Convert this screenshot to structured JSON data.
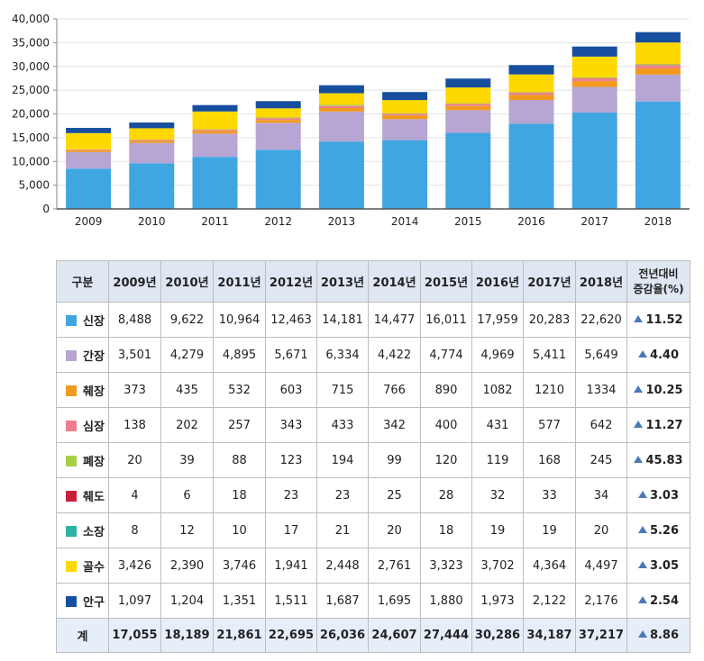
{
  "chart_data": {
    "type": "bar",
    "stacked": true,
    "categories": [
      "2009",
      "2010",
      "2011",
      "2012",
      "2013",
      "2014",
      "2015",
      "2016",
      "2017",
      "2018"
    ],
    "ylim": [
      0,
      40000
    ],
    "yticks": [
      "0",
      "5,000",
      "10,000",
      "15,000",
      "20,000",
      "25,000",
      "30,000",
      "35,000",
      "40,000"
    ],
    "legend": "table",
    "series": [
      {
        "name": "신장",
        "color": "#3fa6e2",
        "values": [
          8488,
          9622,
          10964,
          12463,
          14181,
          14477,
          16011,
          17959,
          20283,
          22620
        ]
      },
      {
        "name": "간장",
        "color": "#b7a5d3",
        "values": [
          3501,
          4279,
          4895,
          5671,
          6334,
          4422,
          4774,
          4969,
          5411,
          5649
        ]
      },
      {
        "name": "췌장",
        "color": "#f29a1e",
        "values": [
          373,
          435,
          532,
          603,
          715,
          766,
          890,
          1082,
          1210,
          1334
        ]
      },
      {
        "name": "심장",
        "color": "#f07d8e",
        "values": [
          138,
          202,
          257,
          343,
          433,
          342,
          400,
          431,
          577,
          642
        ]
      },
      {
        "name": "폐장",
        "color": "#a8cf45",
        "values": [
          20,
          39,
          88,
          123,
          194,
          99,
          120,
          119,
          168,
          245
        ]
      },
      {
        "name": "췌도",
        "color": "#c8203a",
        "values": [
          4,
          6,
          18,
          23,
          23,
          25,
          28,
          32,
          33,
          34
        ]
      },
      {
        "name": "소장",
        "color": "#2bb3a3",
        "values": [
          8,
          12,
          10,
          17,
          21,
          20,
          18,
          19,
          19,
          20
        ]
      },
      {
        "name": "골수",
        "color": "#ffd800",
        "values": [
          3426,
          2390,
          3746,
          1941,
          2448,
          2761,
          3323,
          3702,
          4364,
          4497
        ]
      },
      {
        "name": "안구",
        "color": "#174f9e",
        "values": [
          1097,
          1204,
          1351,
          1511,
          1687,
          1695,
          1880,
          1973,
          2122,
          2176
        ]
      }
    ]
  },
  "table": {
    "header": {
      "category": "구분",
      "years": [
        "2009년",
        "2010년",
        "2011년",
        "2012년",
        "2013년",
        "2014년",
        "2015년",
        "2016년",
        "2017년",
        "2018년"
      ],
      "change_line1": "전년대비",
      "change_line2": "증감율(%)"
    },
    "rows": [
      {
        "name": "신장",
        "color": "#3fa6e2",
        "values": [
          "8,488",
          "9,622",
          "10,964",
          "12,463",
          "14,181",
          "14,477",
          "16,011",
          "17,959",
          "20,283",
          "22,620"
        ],
        "change": "11.52"
      },
      {
        "name": "간장",
        "color": "#b7a5d3",
        "values": [
          "3,501",
          "4,279",
          "4,895",
          "5,671",
          "6,334",
          "4,422",
          "4,774",
          "4,969",
          "5,411",
          "5,649"
        ],
        "change": "4.40"
      },
      {
        "name": "췌장",
        "color": "#f29a1e",
        "values": [
          "373",
          "435",
          "532",
          "603",
          "715",
          "766",
          "890",
          "1082",
          "1210",
          "1334"
        ],
        "change": "10.25"
      },
      {
        "name": "심장",
        "color": "#f07d8e",
        "values": [
          "138",
          "202",
          "257",
          "343",
          "433",
          "342",
          "400",
          "431",
          "577",
          "642"
        ],
        "change": "11.27"
      },
      {
        "name": "폐장",
        "color": "#a8cf45",
        "values": [
          "20",
          "39",
          "88",
          "123",
          "194",
          "99",
          "120",
          "119",
          "168",
          "245"
        ],
        "change": "45.83"
      },
      {
        "name": "췌도",
        "color": "#c8203a",
        "values": [
          "4",
          "6",
          "18",
          "23",
          "23",
          "25",
          "28",
          "32",
          "33",
          "34"
        ],
        "change": "3.03"
      },
      {
        "name": "소장",
        "color": "#2bb3a3",
        "values": [
          "8",
          "12",
          "10",
          "17",
          "21",
          "20",
          "18",
          "19",
          "19",
          "20"
        ],
        "change": "5.26"
      },
      {
        "name": "골수",
        "color": "#ffd800",
        "values": [
          "3,426",
          "2,390",
          "3,746",
          "1,941",
          "2,448",
          "2,761",
          "3,323",
          "3,702",
          "4,364",
          "4,497"
        ],
        "change": "3.05"
      },
      {
        "name": "안구",
        "color": "#174f9e",
        "values": [
          "1,097",
          "1,204",
          "1,351",
          "1,511",
          "1,687",
          "1,695",
          "1,880",
          "1,973",
          "2,122",
          "2,176"
        ],
        "change": "2.54"
      }
    ],
    "total": {
      "name": "계",
      "values": [
        "17,055",
        "18,189",
        "21,861",
        "22,695",
        "26,036",
        "24,607",
        "27,444",
        "30,286",
        "34,187",
        "37,217"
      ],
      "change": "8.86"
    }
  }
}
